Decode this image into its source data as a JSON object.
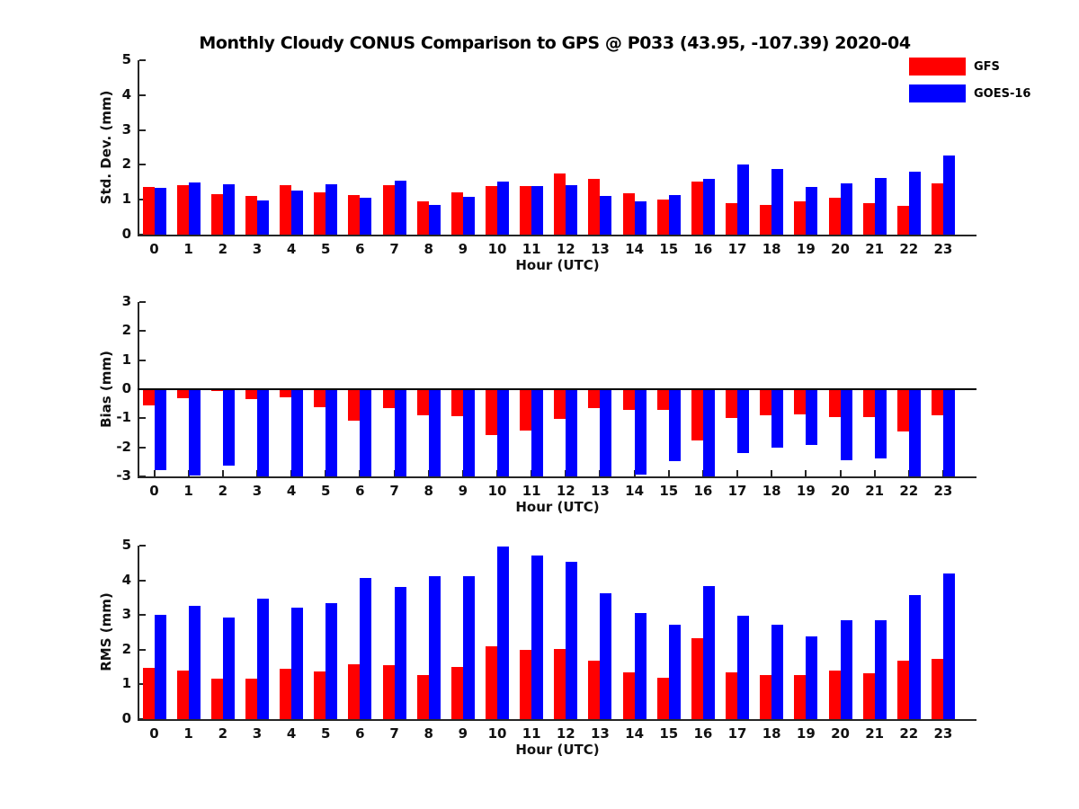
{
  "title": "Monthly Cloudy CONUS Comparison to GPS @ P033 (43.95, -107.39) 2020-04",
  "legend": {
    "items": [
      {
        "label": "GFS",
        "color": "#ff0000"
      },
      {
        "label": "GOES-16",
        "color": "#0000ff"
      }
    ]
  },
  "colors": {
    "gfs": "#ff0000",
    "goes16": "#0000ff",
    "axis": "#262626",
    "text": "#111111"
  },
  "chart_data": [
    {
      "id": "std_dev",
      "type": "bar",
      "title": "",
      "xlabel": "Hour (UTC)",
      "ylabel": "Std. Dev. (mm)",
      "ylim": [
        0,
        5
      ],
      "yticks": [
        0,
        1,
        2,
        3,
        4,
        5
      ],
      "grid": false,
      "categories": [
        0,
        1,
        2,
        3,
        4,
        5,
        6,
        7,
        8,
        9,
        10,
        11,
        12,
        13,
        14,
        15,
        16,
        17,
        18,
        19,
        20,
        21,
        22,
        23
      ],
      "series": [
        {
          "name": "GFS",
          "color": "#ff0000",
          "values": [
            1.37,
            1.41,
            1.17,
            1.1,
            1.43,
            1.22,
            1.14,
            1.43,
            0.95,
            1.22,
            1.38,
            1.39,
            1.76,
            1.6,
            1.18,
            1.0,
            1.53,
            0.9,
            0.86,
            0.95,
            1.05,
            0.89,
            0.82,
            1.47
          ]
        },
        {
          "name": "GOES-16",
          "color": "#0000ff",
          "values": [
            1.35,
            1.5,
            1.45,
            0.97,
            1.26,
            1.45,
            1.06,
            1.55,
            0.85,
            1.08,
            1.53,
            1.39,
            1.41,
            1.12,
            0.96,
            1.13,
            1.59,
            2.02,
            1.87,
            1.37,
            1.48,
            1.62,
            1.81,
            2.26
          ]
        }
      ]
    },
    {
      "id": "bias",
      "type": "bar",
      "title": "",
      "xlabel": "Hour (UTC)",
      "ylabel": "Bias (mm)",
      "ylim": [
        -3,
        3
      ],
      "yticks": [
        -3,
        -2,
        -1,
        0,
        1,
        2,
        3
      ],
      "grid": false,
      "categories": [
        0,
        1,
        2,
        3,
        4,
        5,
        6,
        7,
        8,
        9,
        10,
        11,
        12,
        13,
        14,
        15,
        16,
        17,
        18,
        19,
        20,
        21,
        22,
        23
      ],
      "series": [
        {
          "name": "GFS",
          "color": "#ff0000",
          "values": [
            -0.55,
            -0.32,
            -0.06,
            -0.35,
            -0.27,
            -0.62,
            -1.09,
            -0.66,
            -0.9,
            -0.92,
            -1.58,
            -1.43,
            -1.03,
            -0.64,
            -0.7,
            -0.72,
            -1.76,
            -1.0,
            -0.91,
            -0.86,
            -0.96,
            -0.95,
            -1.45,
            -0.9
          ]
        },
        {
          "name": "GOES-16",
          "color": "#0000ff",
          "values": [
            -2.78,
            -2.96,
            -2.62,
            -3.0,
            -3.0,
            -3.0,
            -3.0,
            -3.0,
            -3.0,
            -3.0,
            -3.0,
            -3.0,
            -3.0,
            -3.0,
            -2.95,
            -2.46,
            -3.0,
            -2.2,
            -2.02,
            -1.93,
            -2.45,
            -2.37,
            -3.0,
            -3.0
          ]
        }
      ]
    },
    {
      "id": "rms",
      "type": "bar",
      "title": "",
      "xlabel": "Hour (UTC)",
      "ylabel": "RMS (mm)",
      "ylim": [
        0,
        5
      ],
      "yticks": [
        0,
        1,
        2,
        3,
        4,
        5
      ],
      "grid": false,
      "categories": [
        0,
        1,
        2,
        3,
        4,
        5,
        6,
        7,
        8,
        9,
        10,
        11,
        12,
        13,
        14,
        15,
        16,
        17,
        18,
        19,
        20,
        21,
        22,
        23
      ],
      "series": [
        {
          "name": "GFS",
          "color": "#ff0000",
          "values": [
            1.47,
            1.41,
            1.17,
            1.17,
            1.44,
            1.37,
            1.57,
            1.56,
            1.26,
            1.5,
            2.11,
            1.99,
            2.03,
            1.69,
            1.34,
            1.2,
            2.33,
            1.34,
            1.26,
            1.28,
            1.4,
            1.31,
            1.69,
            1.74
          ]
        },
        {
          "name": "GOES-16",
          "color": "#0000ff",
          "values": [
            3.01,
            3.27,
            2.92,
            3.46,
            3.21,
            3.34,
            4.07,
            3.81,
            4.11,
            4.12,
            4.98,
            4.72,
            4.53,
            3.63,
            3.06,
            2.73,
            3.84,
            2.98,
            2.72,
            2.38,
            2.86,
            2.85,
            3.58,
            4.2
          ]
        }
      ]
    }
  ]
}
